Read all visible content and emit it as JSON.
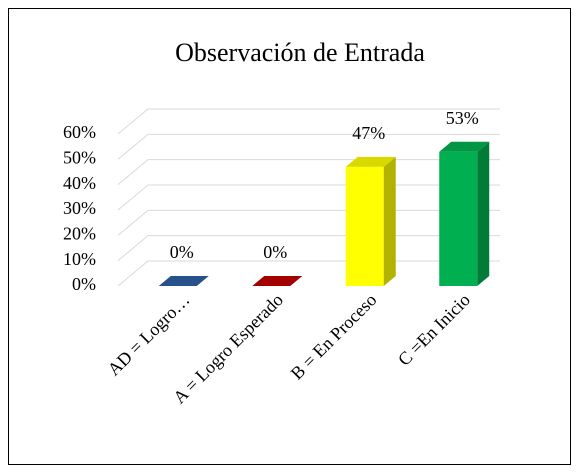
{
  "chart_data": {
    "type": "bar3d",
    "title": "Observación de Entrada",
    "categories": [
      "AD = Logro…",
      "A = Logro Esperado",
      "B = En Proceso",
      "C =En Inicio"
    ],
    "values": [
      0,
      0,
      47,
      53
    ],
    "value_labels": [
      "0%",
      "0%",
      "47%",
      "53%"
    ],
    "colors": [
      "#2e5fa3",
      "#c00000",
      "#ffff00",
      "#00b050"
    ],
    "ylim": [
      0,
      60
    ],
    "yticks": [
      {
        "value": 0,
        "label": "0%"
      },
      {
        "value": 10,
        "label": "10%"
      },
      {
        "value": 20,
        "label": "20%"
      },
      {
        "value": 30,
        "label": "30%"
      },
      {
        "value": 40,
        "label": "40%"
      },
      {
        "value": 50,
        "label": "50%"
      },
      {
        "value": 60,
        "label": "60%"
      }
    ],
    "grid": true
  }
}
